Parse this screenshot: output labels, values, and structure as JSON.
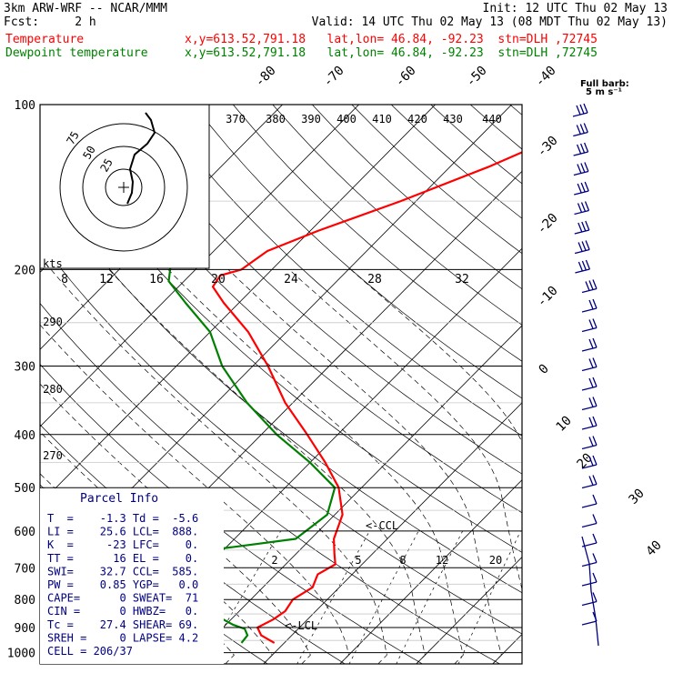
{
  "header": {
    "line1_left": "3km ARW-WRF -- NCAR/MMM",
    "line1_right": "Init: 12 UTC Thu 02 May 13",
    "line2_left": "Fcst:     2 h",
    "line2_right": "Valid: 14 UTC Thu 02 May 13 (08 MDT Thu 02 May 13)",
    "temp_label": "Temperature",
    "temp_info": "x,y=613.52,791.18   lat,lon= 46.84, -92.23  stn=DLH ,72745",
    "dew_label": "Dewpoint temperature",
    "dew_info": "x,y=613.52,791.18   lat,lon= 46.84, -92.23  stn=DLH ,72745",
    "barb_key_1": "Full barb:",
    "barb_key_2": "5 m s⁻¹"
  },
  "colors": {
    "temperature": "#ff0000",
    "dewpoint": "#008000",
    "hodograph": "#000000",
    "parcel_text": "#000080",
    "barbs": "#000080"
  },
  "parcel_info": {
    "title": "Parcel Info",
    "rows": [
      "T  =    -1.3 Td =  -5.6",
      "LI =    25.6 LCL=  888.",
      "K  =     -23 LFC=    0.",
      "TT =      16 EL =    0.",
      "SWI=    32.7 CCL=  585.",
      "PW =    0.85 YGP=   0.0",
      "CAPE=      0 SWEAT=  71",
      "CIN =      0 HWBZ=   0.",
      "Tc =    27.4 SHEAR= 69.",
      "SREH =     0 LAPSE= 4.2",
      "CELL = 206/37"
    ]
  },
  "annotations": {
    "ccl_label": "<-CCL",
    "lcl_label": "<-LCL",
    "kts_label": "kts"
  },
  "chart_data": {
    "type": "line",
    "subtype": "skew-T log-P",
    "y_axis": {
      "label": "",
      "scale": "log",
      "range_hPa": [
        1000,
        100
      ],
      "ticks": [
        100,
        200,
        300,
        400,
        500,
        600,
        700,
        800,
        900,
        1000
      ]
    },
    "isotherm_labels": [
      -80,
      -70,
      -60,
      -50,
      -40,
      -30,
      -20,
      -10,
      0,
      10,
      20,
      30,
      40
    ],
    "mixing_ratio_labels": [
      "2",
      "5",
      "8",
      "12",
      "20"
    ],
    "theta_labels_top": [
      "370",
      "380",
      "390",
      "400",
      "410",
      "420",
      "430",
      "440"
    ],
    "theta_labels_left": [
      "290",
      "280",
      "270"
    ],
    "hodograph_speed_ticks": [
      "8",
      "12",
      "16",
      "20",
      "24",
      "28",
      "32"
    ],
    "hodograph_ring_labels": [
      "75",
      "50",
      "25"
    ],
    "series": [
      {
        "name": "Temperature",
        "pressure_hPa": [
          960,
          930,
          900,
          870,
          840,
          800,
          760,
          720,
          690,
          660,
          620,
          560,
          500,
          450,
          400,
          350,
          300,
          260,
          230,
          215,
          205,
          200,
          185,
          170,
          150,
          130,
          115,
          100
        ],
        "temp_C": [
          -1.3,
          -4,
          -5.5,
          -4.5,
          -4,
          -4.5,
          -3.5,
          -4.5,
          -3.5,
          -5,
          -7,
          -9,
          -13,
          -18,
          -24,
          -31,
          -38,
          -45,
          -52,
          -55.5,
          -56,
          -54,
          -53,
          -49,
          -42,
          -35,
          -30,
          -26
        ]
      },
      {
        "name": "Dewpoint temperature",
        "pressure_hPa": [
          960,
          930,
          905,
          890,
          870,
          840,
          800,
          760,
          720,
          690,
          660,
          620,
          560,
          500,
          450,
          400,
          350,
          300,
          260,
          230,
          210,
          195,
          180,
          165,
          150,
          140,
          130,
          115,
          100
        ],
        "temp_C": [
          -5.6,
          -5.8,
          -7,
          -9,
          -11,
          -16,
          -23,
          -40,
          -60,
          -45,
          -25,
          -12,
          -11,
          -13.5,
          -20,
          -28,
          -36,
          -44,
          -50,
          -57,
          -62,
          -64,
          -65,
          -68,
          -72,
          -76,
          -80,
          -84,
          -84
        ]
      }
    ]
  }
}
